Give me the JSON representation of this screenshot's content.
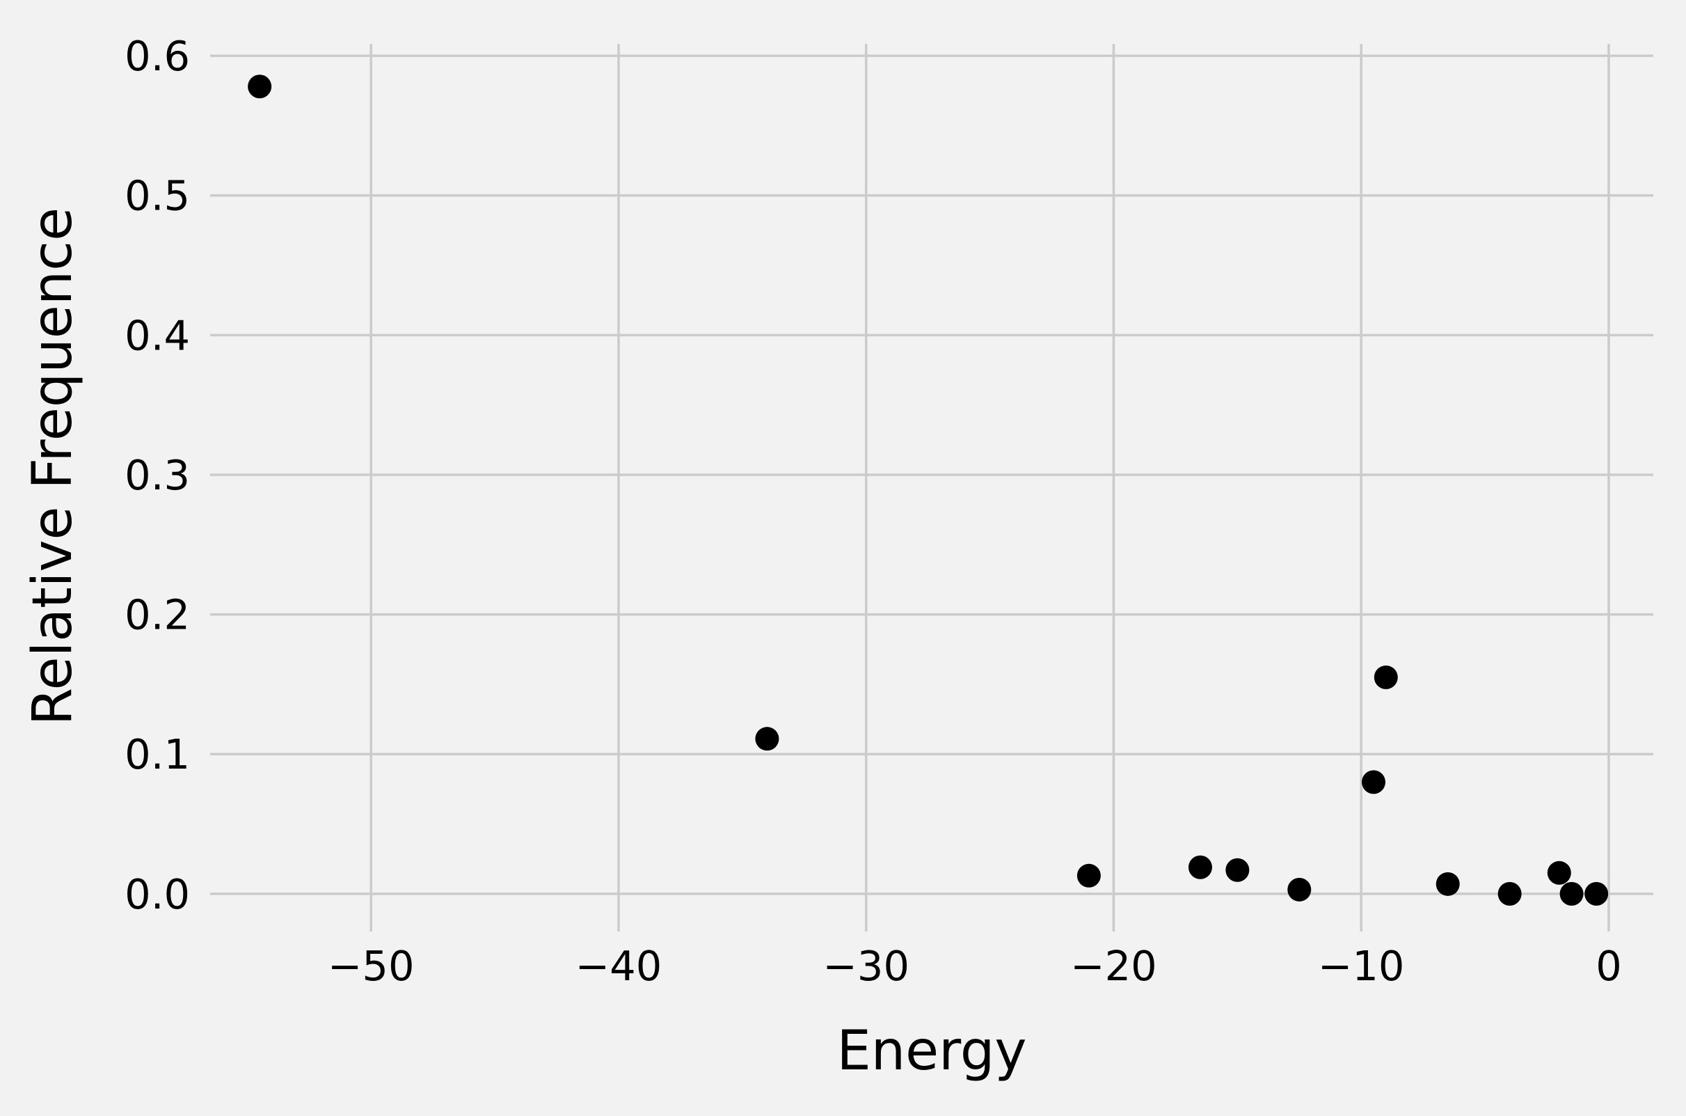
{
  "chart_data": {
    "type": "scatter",
    "title": "",
    "xlabel": "Energy",
    "ylabel": "Relative Frequence",
    "xlim": [
      -56.5,
      1.8
    ],
    "ylim": [
      -0.022,
      0.62
    ],
    "x_ticks": [
      -50,
      -40,
      -30,
      -20,
      -10,
      0
    ],
    "x_tick_labels": [
      "−50",
      "−40",
      "−30",
      "−20",
      "−10",
      "0"
    ],
    "y_ticks": [
      0.0,
      0.1,
      0.2,
      0.3,
      0.4,
      0.5,
      0.6
    ],
    "y_tick_labels": [
      "0.0",
      "0.1",
      "0.2",
      "0.3",
      "0.4",
      "0.5",
      "0.6"
    ],
    "grid": true,
    "legend": "none",
    "point_color": "#000000",
    "background": "#f2f2f2",
    "points": [
      {
        "x": -54.5,
        "y": 0.578
      },
      {
        "x": -34.0,
        "y": 0.111
      },
      {
        "x": -21.0,
        "y": 0.013
      },
      {
        "x": -16.5,
        "y": 0.019
      },
      {
        "x": -15.0,
        "y": 0.017
      },
      {
        "x": -12.5,
        "y": 0.003
      },
      {
        "x": -9.5,
        "y": 0.08
      },
      {
        "x": -9.0,
        "y": 0.155
      },
      {
        "x": -6.5,
        "y": 0.007
      },
      {
        "x": -4.0,
        "y": 0.0
      },
      {
        "x": -2.0,
        "y": 0.015
      },
      {
        "x": -1.5,
        "y": 0.0
      },
      {
        "x": -0.5,
        "y": 0.0
      }
    ]
  }
}
